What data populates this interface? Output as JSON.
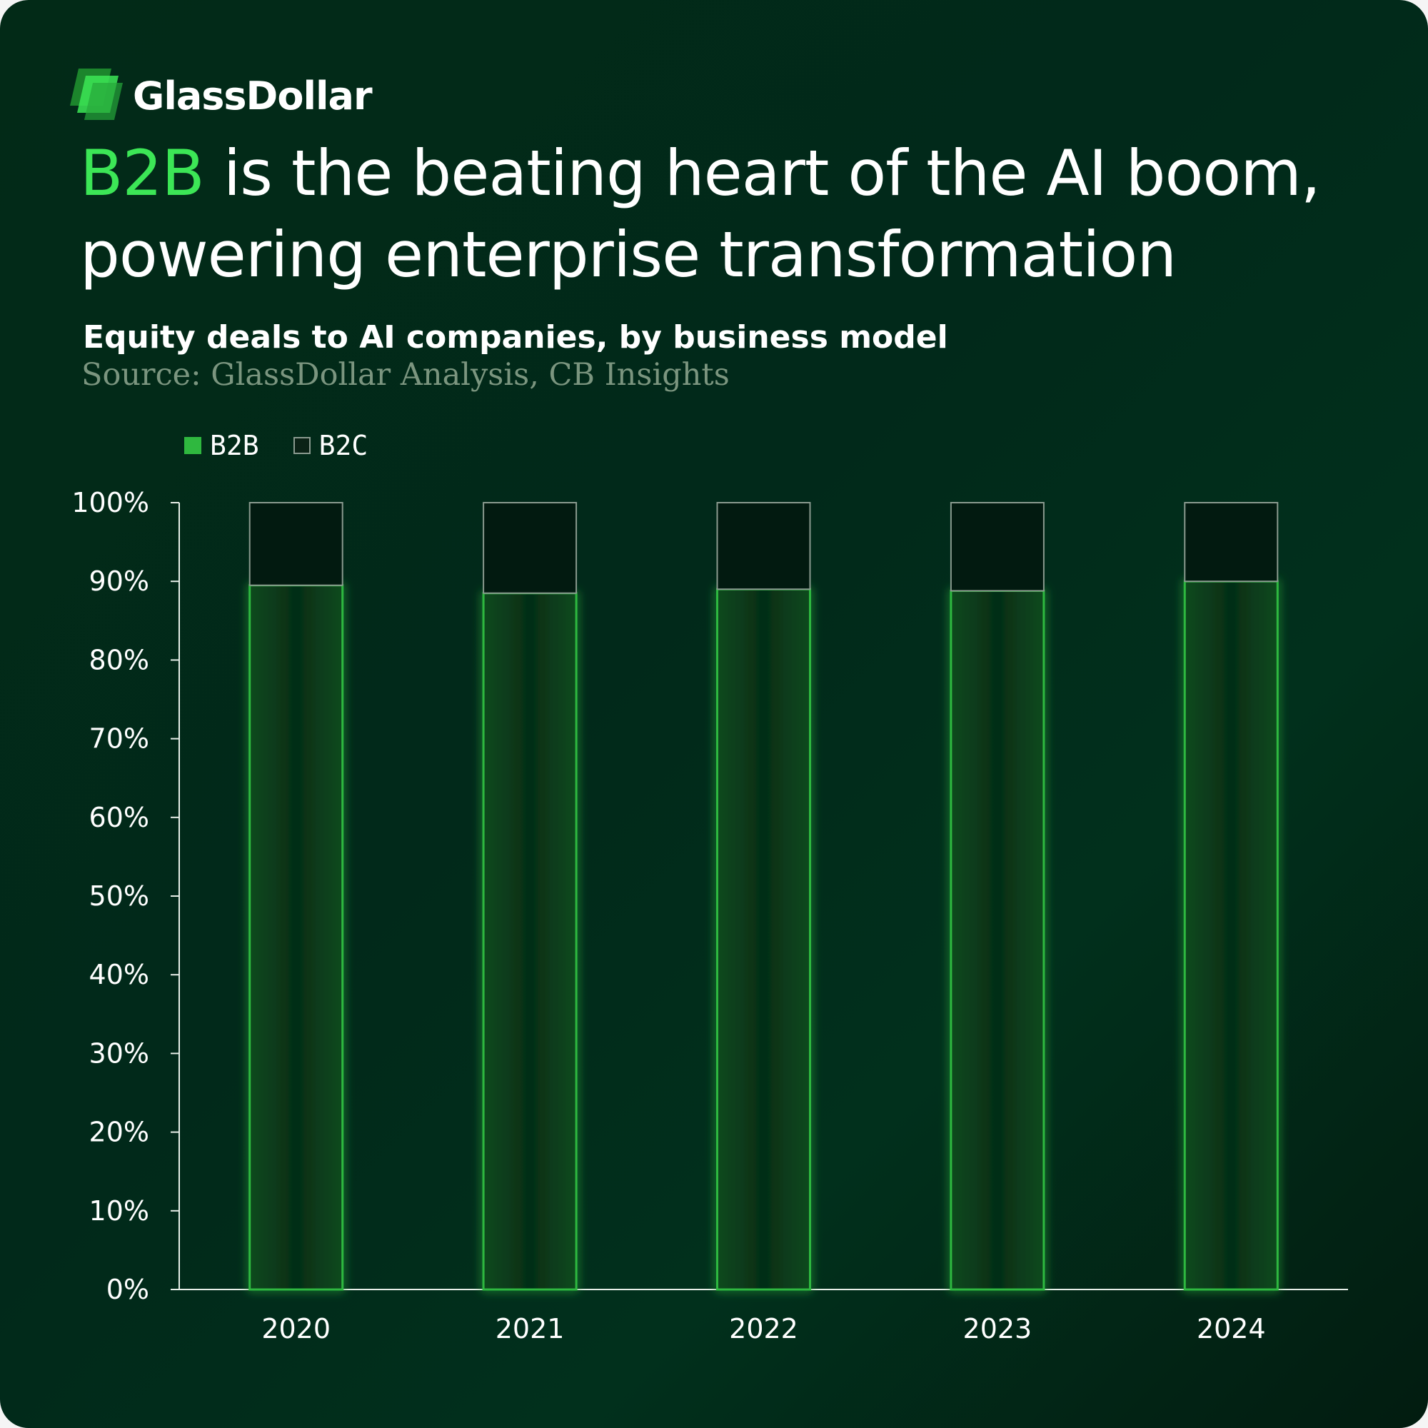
{
  "brand": {
    "name": "GlassDollar",
    "logo": "glassdollar-logo",
    "accent": "#3ce656"
  },
  "headline": {
    "highlight": "B2B",
    "rest": " is the beating heart of the AI boom, powering enterprise transformation"
  },
  "subtitle": "Equity deals to AI companies, by business model",
  "source": "Source: GlassDollar Analysis, CB Insights",
  "chart_data": {
    "type": "bar",
    "stacked": true,
    "categories": [
      "2020",
      "2021",
      "2022",
      "2023",
      "2024"
    ],
    "series": [
      {
        "name": "B2B",
        "values": [
          89.5,
          88.5,
          89,
          88.8,
          90
        ],
        "color": "#2fb83f"
      },
      {
        "name": "B2C",
        "values": [
          10.5,
          11.5,
          11,
          11.2,
          10
        ],
        "color": "#8a9a8f"
      }
    ],
    "ylim": [
      0,
      100
    ],
    "yticks": [
      "0%",
      "10%",
      "20%",
      "30%",
      "40%",
      "50%",
      "60%",
      "70%",
      "80%",
      "90%",
      "100%"
    ],
    "legend": "top-left",
    "grid": false
  }
}
